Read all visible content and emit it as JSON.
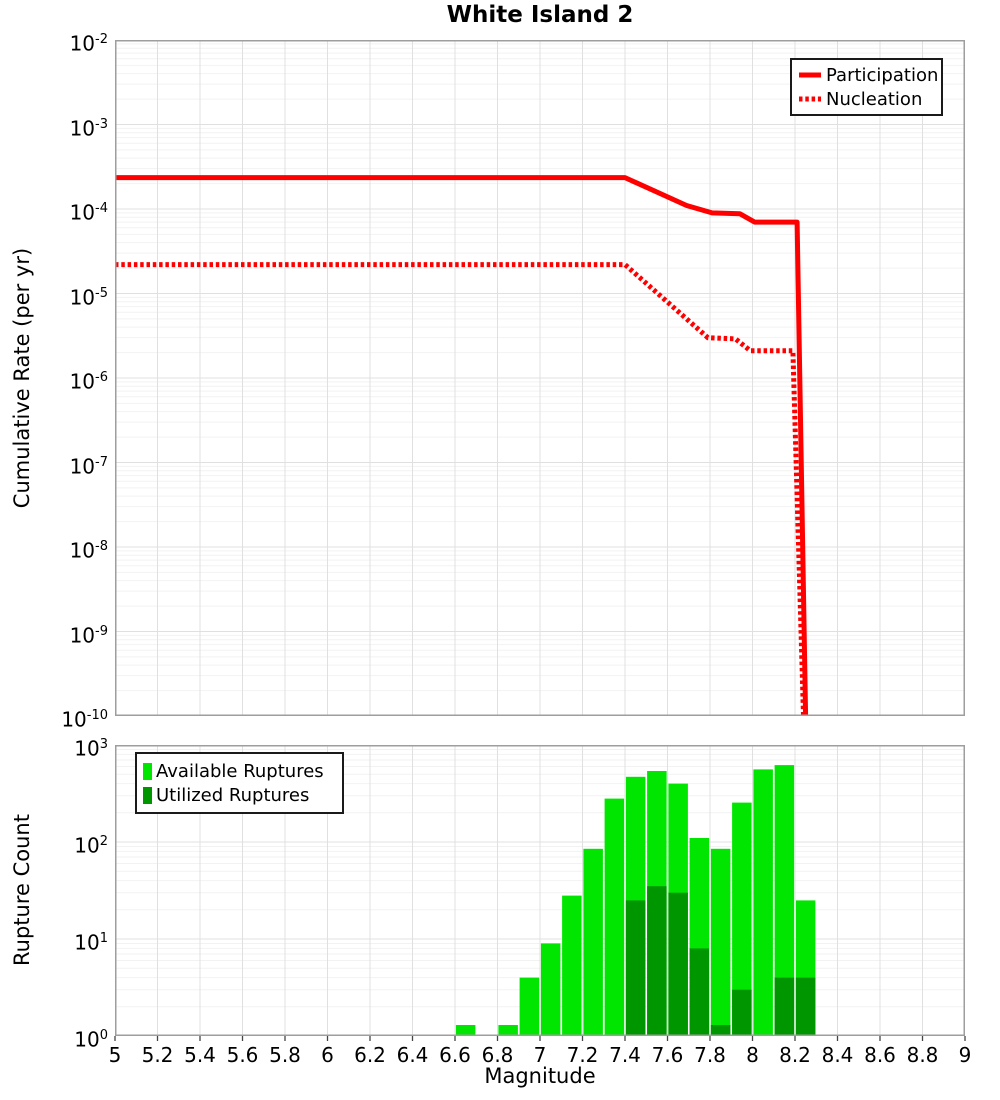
{
  "title": "White Island 2",
  "axes": {
    "x_label": "Magnitude",
    "top_y_label": "Cumulative Rate (per yr)",
    "bottom_y_label": "Rupture Count",
    "x_tick_labels": [
      "5",
      "5.2",
      "5.4",
      "5.6",
      "5.8",
      "6",
      "6.2",
      "6.4",
      "6.6",
      "6.8",
      "7",
      "7.2",
      "7.4",
      "7.6",
      "7.8",
      "8",
      "8.2",
      "8.4",
      "8.6",
      "8.8",
      "9"
    ],
    "top_y_tick_exponents": [
      -2,
      -3,
      -4,
      -5,
      -6,
      -7,
      -8,
      -9,
      -10
    ],
    "bottom_y_tick_exponents": [
      3,
      2,
      1,
      0
    ]
  },
  "colors": {
    "line_red": "#ff0000",
    "available_green": "#00e600",
    "utilized_green": "#009600",
    "grid_major": "#e0e0e0",
    "grid_minor": "#f2f2f2",
    "frame": "#9e9e9e",
    "tick_mark": "#444444"
  },
  "chart_data": [
    {
      "type": "line",
      "title": "White Island 2",
      "xlabel": "Magnitude",
      "ylabel": "Cumulative Rate (per yr)",
      "x_range": [
        5,
        9
      ],
      "y_range": [
        1e-10,
        0.01
      ],
      "x_tick_step": 0.2,
      "grid": true,
      "legend_position": "top-right",
      "series": [
        {
          "name": "Participation",
          "style": "solid",
          "color": "#ff0000",
          "points": [
            [
              5.0,
              0.000235
            ],
            [
              7.4,
              0.000235
            ],
            [
              7.69,
              0.00011
            ],
            [
              7.81,
              9e-05
            ],
            [
              7.94,
              8.8e-05
            ],
            [
              8.01,
              7e-05
            ],
            [
              8.21,
              7e-05
            ],
            [
              8.25,
              1e-10
            ]
          ]
        },
        {
          "name": "Nucleation",
          "style": "dotted",
          "color": "#ff0000",
          "points": [
            [
              5.0,
              2.2e-05
            ],
            [
              7.4,
              2.2e-05
            ],
            [
              7.79,
              3e-06
            ],
            [
              7.92,
              2.9e-06
            ],
            [
              7.99,
              2.1e-06
            ],
            [
              8.19,
              2.1e-06
            ],
            [
              8.24,
              1e-10
            ]
          ]
        }
      ]
    },
    {
      "type": "bar",
      "xlabel": "Magnitude",
      "ylabel": "Rupture Count",
      "x_range": [
        5,
        9
      ],
      "y_range": [
        1,
        1000
      ],
      "bin_width": 0.1,
      "grid": true,
      "legend_position": "top-left",
      "bin_centers": [
        6.65,
        6.85,
        6.95,
        7.05,
        7.15,
        7.25,
        7.35,
        7.45,
        7.55,
        7.65,
        7.75,
        7.85,
        7.95,
        8.05,
        8.15,
        8.25
      ],
      "series": [
        {
          "name": "Available Ruptures",
          "color": "#00e600",
          "values": [
            1,
            1,
            4,
            9,
            28,
            85,
            280,
            470,
            540,
            400,
            110,
            85,
            255,
            560,
            620,
            25
          ]
        },
        {
          "name": "Utilized Ruptures",
          "color": "#009600",
          "values": [
            0,
            0,
            0,
            0,
            0,
            0,
            0,
            25,
            35,
            30,
            8,
            1,
            3,
            0,
            4,
            4
          ]
        }
      ]
    }
  ]
}
